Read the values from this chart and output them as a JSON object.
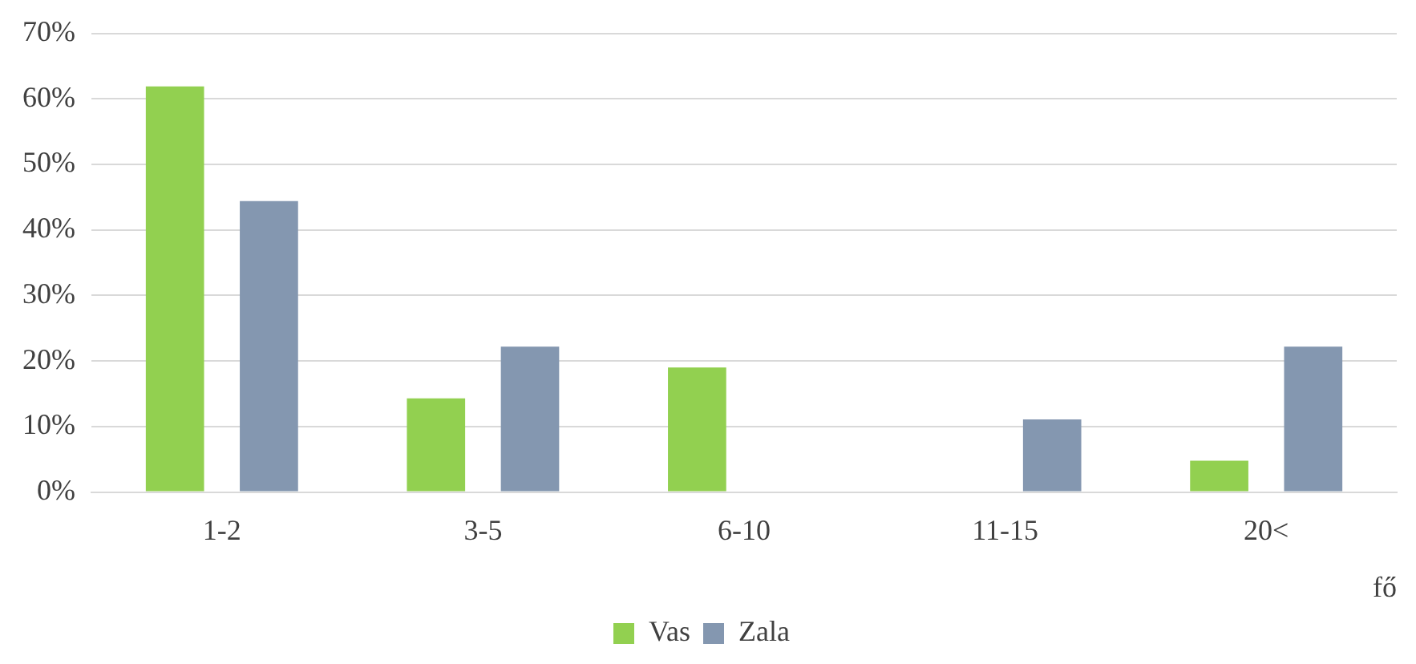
{
  "chart_data": {
    "type": "bar",
    "xlabel": "fő",
    "categories": [
      "1-2",
      "3-5",
      "6-10",
      "11-15",
      "20<"
    ],
    "series": [
      {
        "name": "Vas",
        "color": "#92d050",
        "values": [
          61.9,
          14.3,
          19.0,
          0,
          4.8
        ]
      },
      {
        "name": "Zala",
        "color": "#8497b0",
        "values": [
          44.4,
          22.2,
          0,
          11.1,
          22.2
        ]
      }
    ],
    "ylim": [
      0,
      70
    ],
    "yticks": [
      {
        "value": 0,
        "label": "0%"
      },
      {
        "value": 10,
        "label": "10%"
      },
      {
        "value": 20,
        "label": "20%"
      },
      {
        "value": 30,
        "label": "30%"
      },
      {
        "value": 40,
        "label": "40%"
      },
      {
        "value": 50,
        "label": "50%"
      },
      {
        "value": 60,
        "label": "60%"
      },
      {
        "value": 70,
        "label": "70%"
      }
    ],
    "grid": "y",
    "legend": "bottom"
  }
}
